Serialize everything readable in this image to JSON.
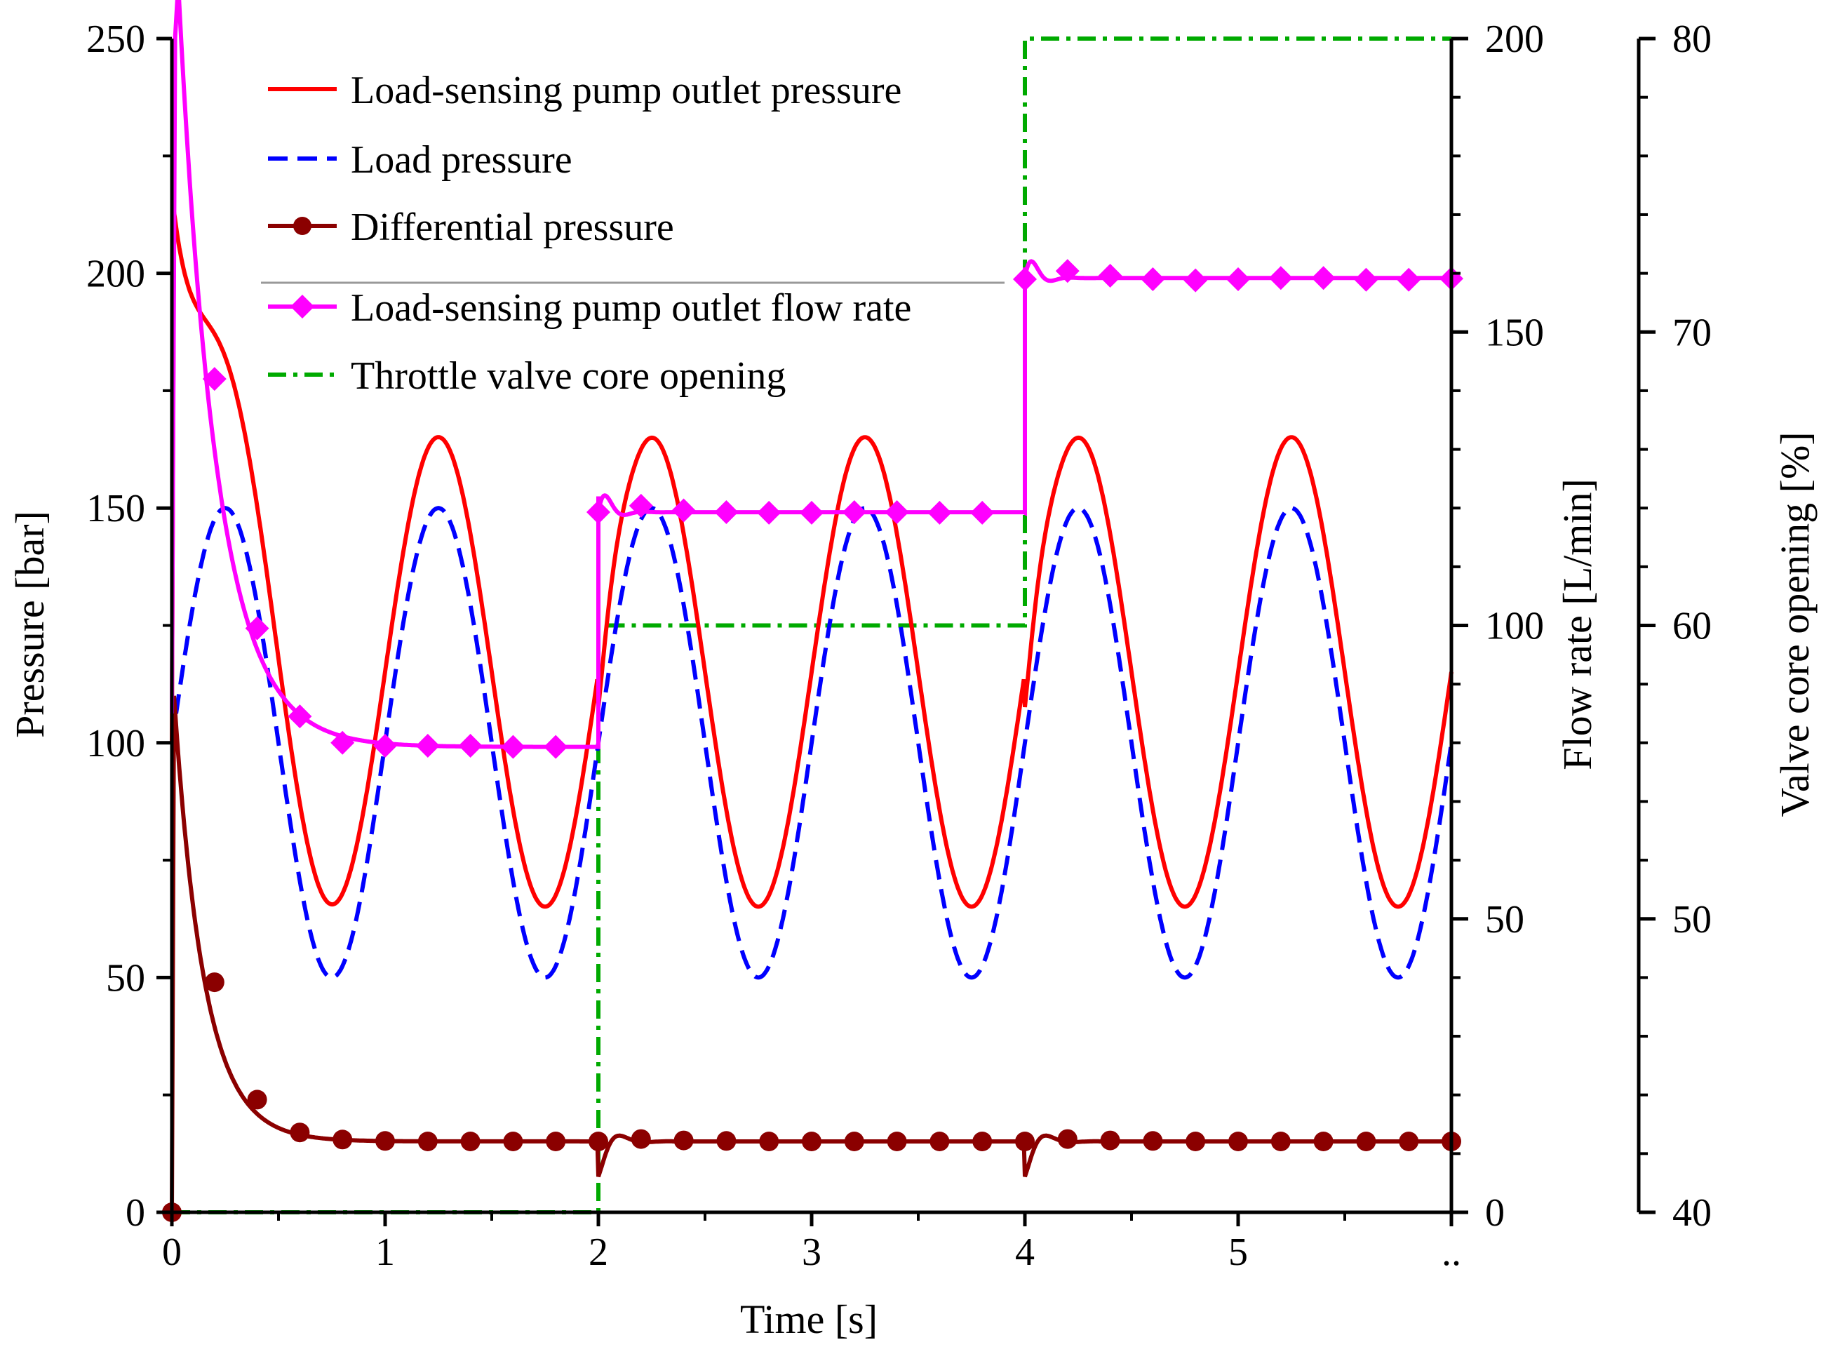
{
  "chart_data": {
    "type": "line",
    "xlabel": "Time [s]",
    "x_ticks": [
      "0",
      "1",
      "2",
      "3",
      "4",
      "5",
      ".."
    ],
    "xlim": [
      0,
      6
    ],
    "axes": {
      "pressure": {
        "label": "Pressure [bar]",
        "ylim": [
          0,
          250
        ],
        "ticks": [
          "0",
          "50",
          "100",
          "150",
          "200",
          "250"
        ]
      },
      "flow": {
        "label": "Flow rate [L/min]",
        "ylim": [
          0,
          200
        ],
        "ticks": [
          "0",
          "50",
          "100",
          "150",
          "200"
        ]
      },
      "opening": {
        "label": "Valve core opening  [%]",
        "ylim": [
          40,
          80
        ],
        "ticks": [
          "40",
          "50",
          "60",
          "70",
          "80"
        ]
      }
    },
    "series": [
      {
        "name": "Load-sensing pump outlet pressure",
        "axis": "pressure",
        "color": "#ff0000",
        "style": "solid",
        "marker": "none",
        "description": "Starts near 210 bar, settles to oscillation between about 66 and 166 bar (period 1 s, peaks at 1.25, 2.25, 3.25, 4.25, 5.25 s)"
      },
      {
        "name": "Load pressure",
        "axis": "pressure",
        "color": "#0000ff",
        "style": "dash",
        "marker": "none",
        "description": "Sinusoid 100 + 50 sin(2*pi*t), range 50 to 150 bar"
      },
      {
        "name": "Differential pressure",
        "axis": "pressure",
        "color": "#8b0000",
        "style": "solid",
        "marker": "circle",
        "marker_points": [
          [
            0,
            0
          ],
          [
            0.2,
            49
          ],
          [
            0.4,
            24
          ],
          [
            0.6,
            17
          ],
          [
            0.8,
            15.5
          ],
          [
            1.0,
            15.2
          ],
          [
            1.2,
            15.1
          ],
          [
            1.4,
            15.1
          ],
          [
            1.6,
            15.1
          ],
          [
            1.8,
            15.1
          ],
          [
            2.0,
            15.1
          ],
          [
            2.2,
            15.6
          ],
          [
            2.4,
            15.3
          ],
          [
            2.6,
            15.2
          ],
          [
            2.8,
            15.1
          ],
          [
            3.0,
            15.1
          ],
          [
            3.2,
            15.1
          ],
          [
            3.4,
            15.1
          ],
          [
            3.6,
            15.1
          ],
          [
            3.8,
            15.1
          ],
          [
            4.0,
            15.1
          ],
          [
            4.2,
            15.6
          ],
          [
            4.4,
            15.3
          ],
          [
            4.6,
            15.2
          ],
          [
            4.8,
            15.1
          ],
          [
            5.0,
            15.1
          ],
          [
            5.2,
            15.1
          ],
          [
            5.4,
            15.1
          ],
          [
            5.6,
            15.1
          ],
          [
            5.8,
            15.1
          ],
          [
            6.0,
            15.1
          ]
        ]
      },
      {
        "name": "Load-sensing pump outlet flow rate",
        "axis": "flow",
        "color": "#ff00ff",
        "style": "solid",
        "marker": "diamond",
        "marker_points": [
          [
            0.2,
            142
          ],
          [
            0.4,
            99.5
          ],
          [
            0.6,
            84.5
          ],
          [
            0.8,
            80
          ],
          [
            1.0,
            79.5
          ],
          [
            1.2,
            79.5
          ],
          [
            1.4,
            79.5
          ],
          [
            1.6,
            79.3
          ],
          [
            1.8,
            79.3
          ],
          [
            2.0,
            119.3
          ],
          [
            2.2,
            120.4
          ],
          [
            2.4,
            119.6
          ],
          [
            2.6,
            119.3
          ],
          [
            2.8,
            119.2
          ],
          [
            3.0,
            119.2
          ],
          [
            3.2,
            119.3
          ],
          [
            3.4,
            119.3
          ],
          [
            3.6,
            119.2
          ],
          [
            3.8,
            119.2
          ],
          [
            4.0,
            159
          ],
          [
            4.2,
            160.4
          ],
          [
            4.4,
            159.6
          ],
          [
            4.6,
            159
          ],
          [
            4.8,
            158.8
          ],
          [
            5.0,
            159
          ],
          [
            5.2,
            159.2
          ],
          [
            5.4,
            159.2
          ],
          [
            5.6,
            158.9
          ],
          [
            5.8,
            158.9
          ],
          [
            6.0,
            159.1
          ]
        ]
      },
      {
        "name": "Throttle valve core opening",
        "axis": "opening",
        "color": "#00aa00",
        "style": "dashdot",
        "marker": "none",
        "steps": [
          [
            0,
            40
          ],
          [
            2,
            40
          ],
          [
            2,
            60
          ],
          [
            4,
            60
          ],
          [
            4,
            80
          ],
          [
            6,
            80
          ]
        ]
      }
    ]
  }
}
